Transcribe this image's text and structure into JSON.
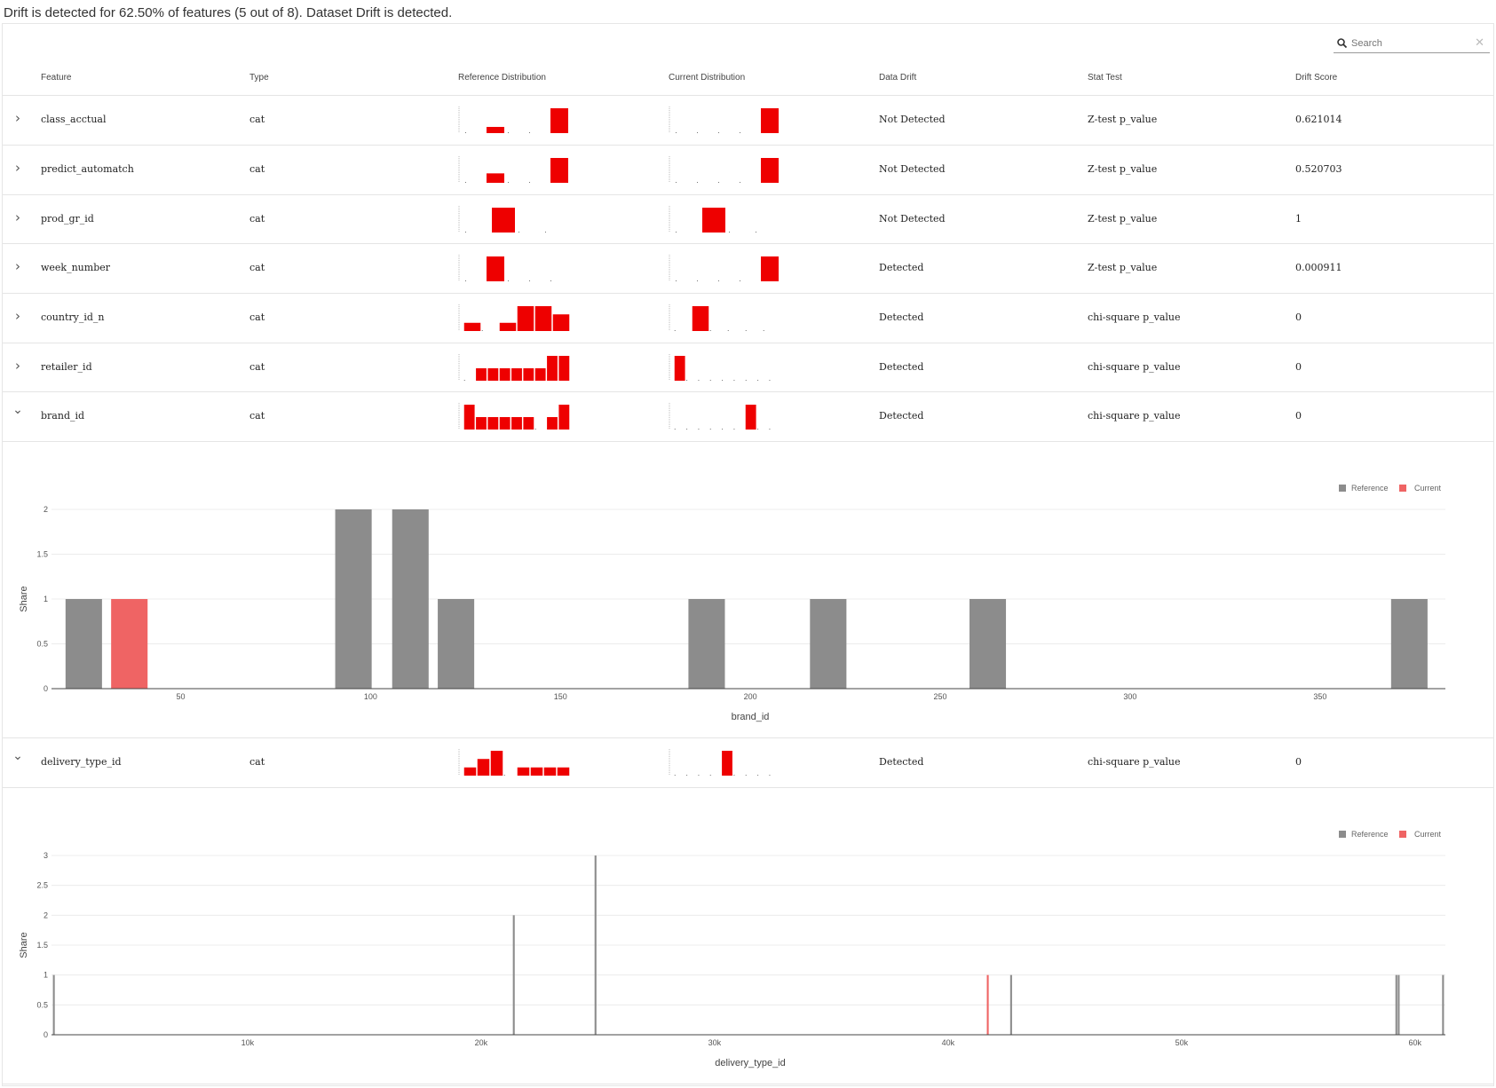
{
  "summary_text": "Drift is detected for 62.50% of features (5 out of 8). Dataset Drift is detected.",
  "search": {
    "placeholder": "Search",
    "clear_icon": "close-icon",
    "icon": "search-icon"
  },
  "columns": [
    "Feature",
    "Type",
    "Reference Distribution",
    "Current Distribution",
    "Data Drift",
    "Stat Test",
    "Drift Score"
  ],
  "colors": {
    "bar": "#ee0000",
    "reference": "#8c8c8c",
    "current": "#ef6464",
    "grid": "#ececec"
  },
  "rows": [
    {
      "feature": "class_acctual",
      "type": "cat",
      "drift": "Not Detected",
      "stat_test": "Z-test p_value",
      "score": "0.621014",
      "expanded": false,
      "ref_dist": [
        0,
        0.25,
        0,
        0,
        1
      ],
      "cur_dist": [
        0,
        0,
        0.02,
        0,
        1
      ]
    },
    {
      "feature": "predict_automatch",
      "type": "cat",
      "drift": "Not Detected",
      "stat_test": "Z-test p_value",
      "score": "0.520703",
      "expanded": false,
      "ref_dist": [
        0,
        0.38,
        0,
        0,
        1
      ],
      "cur_dist": [
        0,
        0,
        0.02,
        0,
        1
      ]
    },
    {
      "feature": "prod_gr_id",
      "type": "cat",
      "drift": "Not Detected",
      "stat_test": "Z-test p_value",
      "score": "1",
      "expanded": false,
      "ref_dist": [
        0,
        1,
        0,
        0
      ],
      "cur_dist": [
        0,
        1,
        0,
        0
      ]
    },
    {
      "feature": "week_number",
      "type": "cat",
      "drift": "Detected",
      "stat_test": "Z-test p_value",
      "score": "0.000911",
      "expanded": false,
      "ref_dist": [
        0,
        1,
        0,
        0.02,
        0
      ],
      "cur_dist": [
        0,
        0,
        0.02,
        0,
        1
      ]
    },
    {
      "feature": "country_id_n",
      "type": "cat",
      "drift": "Detected",
      "stat_test": "chi-square p_value",
      "score": "0",
      "expanded": false,
      "ref_dist": [
        0.33,
        0.02,
        0.33,
        1,
        1,
        0.67
      ],
      "cur_dist": [
        0.02,
        1,
        0.02,
        0.02,
        0.02,
        0.02
      ]
    },
    {
      "feature": "retailer_id",
      "type": "cat",
      "drift": "Detected",
      "stat_test": "chi-square p_value",
      "score": "0",
      "expanded": false,
      "ref_dist": [
        0.02,
        0.5,
        0.5,
        0.5,
        0.5,
        0.5,
        0.5,
        1,
        1
      ],
      "cur_dist": [
        1,
        0.02,
        0.02,
        0.02,
        0.02,
        0.02,
        0.02,
        0.02,
        0.02
      ]
    },
    {
      "feature": "brand_id",
      "type": "cat",
      "drift": "Detected",
      "stat_test": "chi-square p_value",
      "score": "0",
      "expanded": true,
      "ref_dist": [
        1,
        0.5,
        0.5,
        0.5,
        0.5,
        0.5,
        0.02,
        0.5,
        1
      ],
      "cur_dist": [
        0.02,
        0.02,
        0.02,
        0.02,
        0.02,
        0.02,
        1,
        0.02,
        0.02
      ]
    },
    {
      "feature": "delivery_type_id",
      "type": "cat",
      "drift": "Detected",
      "stat_test": "chi-square p_value",
      "score": "0",
      "expanded": true,
      "ref_dist": [
        0.33,
        0.67,
        1,
        0.02,
        0.33,
        0.33,
        0.33,
        0.33
      ],
      "cur_dist": [
        0.02,
        0.02,
        0.02,
        0.02,
        1,
        0.02,
        0.02,
        0.02,
        0.02
      ]
    }
  ],
  "chart_data": [
    {
      "type": "bar",
      "feature": "brand_id",
      "xlabel": "brand_id",
      "ylabel": "Share",
      "legend": [
        "Reference",
        "Current"
      ],
      "legend_position": "top-right",
      "xlim": [
        16,
        383
      ],
      "ylim": [
        0,
        2
      ],
      "xticks": [
        50,
        100,
        150,
        200,
        250,
        300,
        350
      ],
      "yticks": [
        0,
        0.5,
        1,
        1.5,
        2
      ],
      "grid": true,
      "bar_width": 9.6,
      "series": [
        {
          "name": "Reference",
          "x": [
            24.5,
            95.5,
            110.5,
            122.5,
            188.5,
            220.5,
            262.5,
            373.5
          ],
          "values": [
            1,
            2,
            2,
            1,
            1,
            1,
            1,
            1
          ]
        },
        {
          "name": "Current",
          "x": [
            36.5
          ],
          "values": [
            1
          ]
        }
      ]
    },
    {
      "type": "bar",
      "feature": "delivery_type_id",
      "xlabel": "delivery_type_id",
      "ylabel": "Share",
      "legend": [
        "Reference",
        "Current"
      ],
      "legend_position": "top-right",
      "xlim": [
        1600,
        61300
      ],
      "ylim": [
        0,
        3
      ],
      "xticks": [
        10000,
        20000,
        30000,
        40000,
        50000,
        60000
      ],
      "xtick_labels": [
        "10k",
        "20k",
        "30k",
        "40k",
        "50k",
        "60k"
      ],
      "yticks": [
        0,
        0.5,
        1,
        1.5,
        2,
        2.5,
        3
      ],
      "ytick_labels": [
        "0",
        "0.5",
        "1",
        "1.5",
        "2",
        "2.5",
        "3"
      ],
      "grid": true,
      "bar_width": 80,
      "series": [
        {
          "name": "Reference",
          "x": [
            1700,
            21400,
            24900,
            42700,
            59200,
            59300,
            61200
          ],
          "values": [
            1,
            2,
            3,
            1,
            1,
            1,
            1
          ]
        },
        {
          "name": "Current",
          "x": [
            41700
          ],
          "values": [
            1
          ]
        }
      ]
    }
  ]
}
